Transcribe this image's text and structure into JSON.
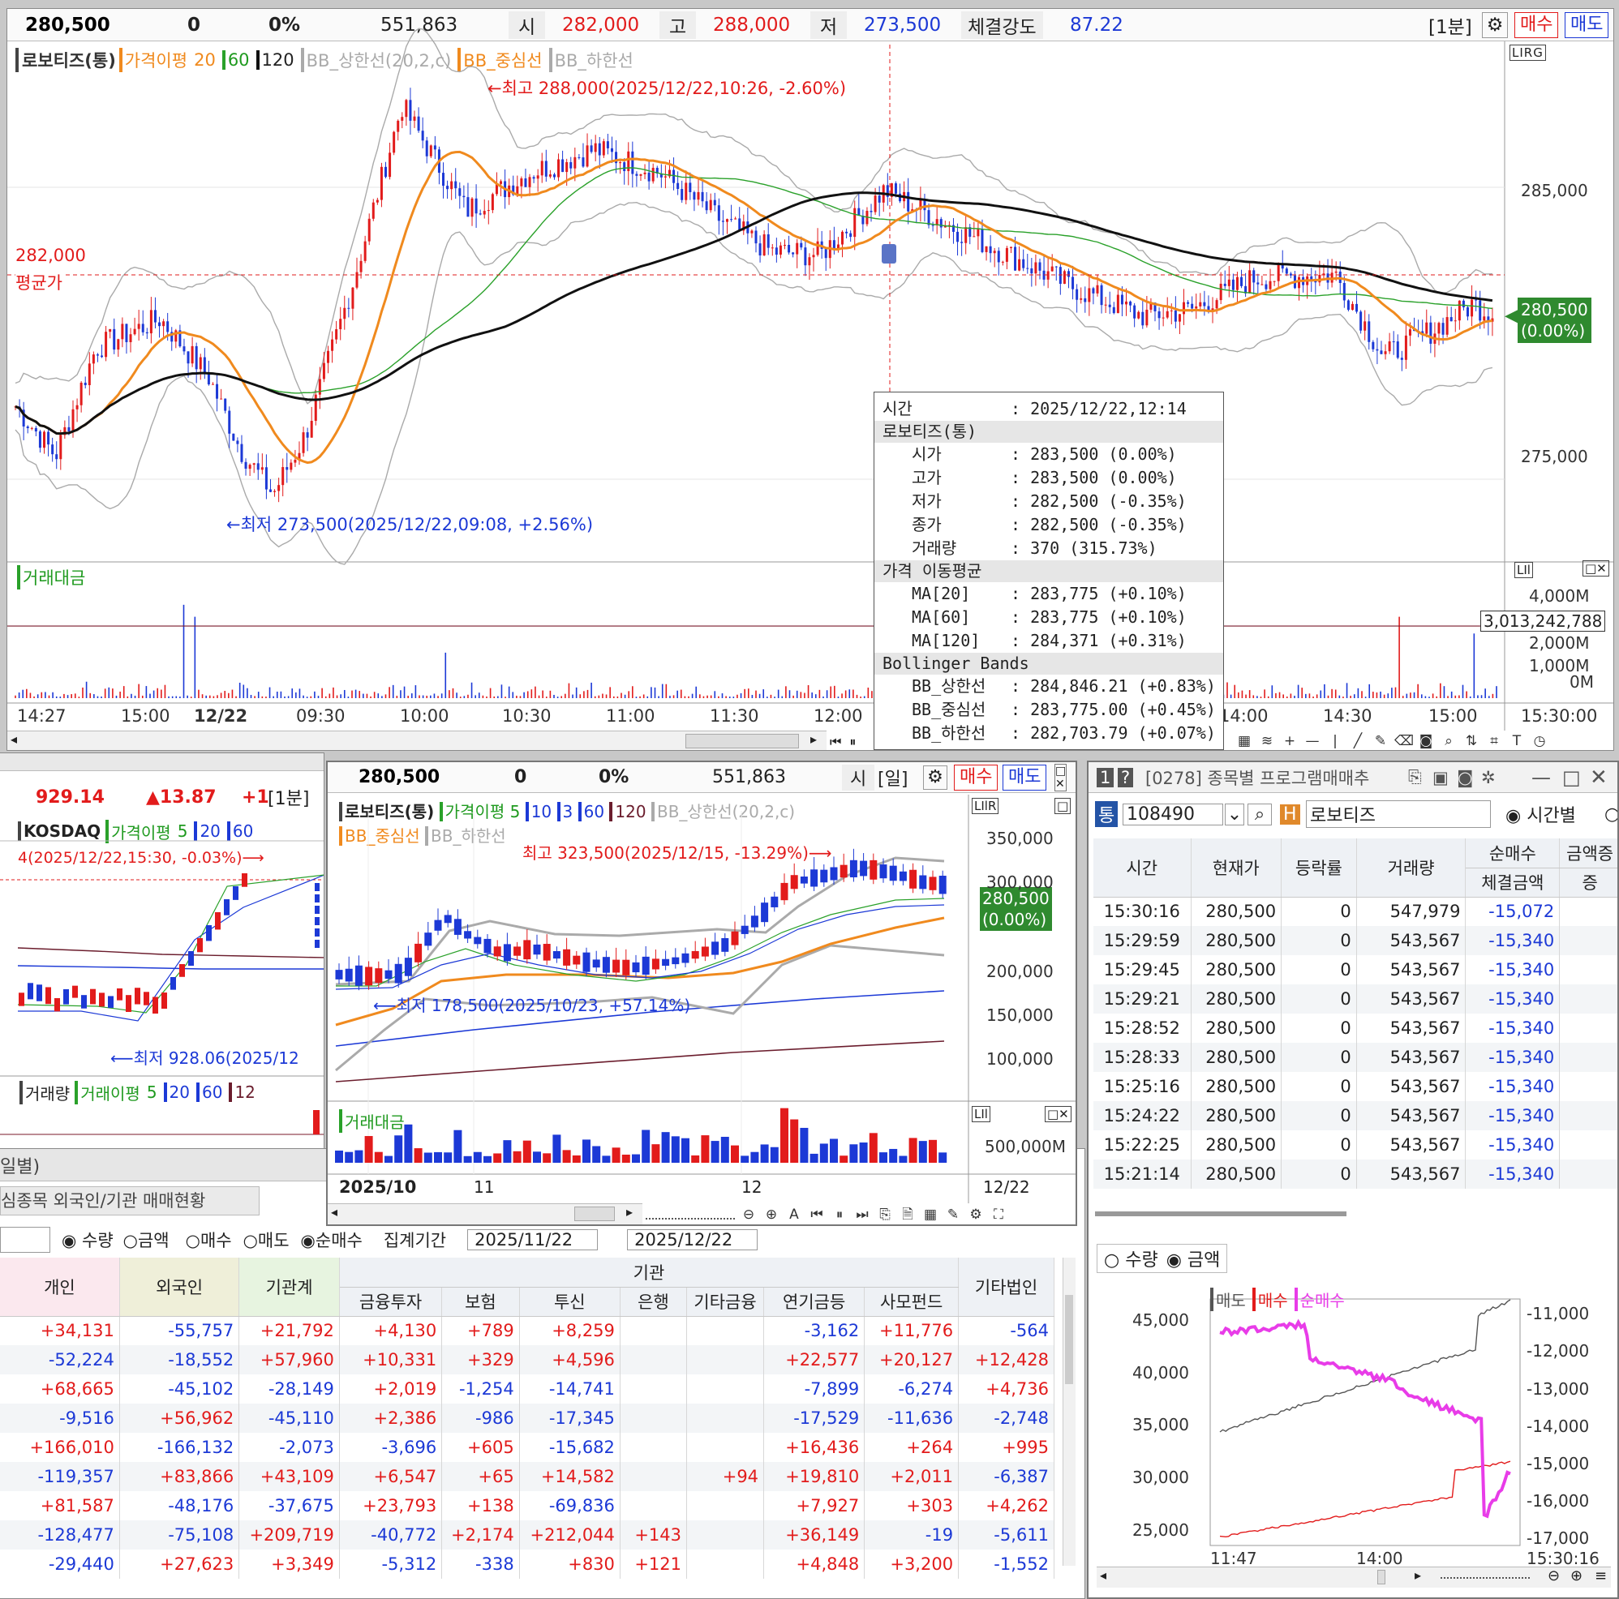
{
  "main": {
    "header": {
      "price": "280,500",
      "change": "0",
      "rate": "0%",
      "volume": "551,863",
      "open_label": "시",
      "open": "282,000",
      "high_label": "고",
      "high": "288,000",
      "low_label": "저",
      "low": "273,500",
      "strength_label": "체결강도",
      "strength": "87.22",
      "interval": "[1분]",
      "buy": "매수",
      "sell": "매도"
    },
    "legend": {
      "name": "로보티즈(통)",
      "ma_label": "가격이평",
      "ma1": "20",
      "ma2": "60",
      "ma3": "120",
      "bb_up": "BB_상한선(20,2,c)",
      "bb_mid": "BB_중심선",
      "bb_low": "BB_하한선",
      "lirg": "LIRG"
    },
    "annotations": {
      "high": "←최고 288,000(2025/12/22,10:26, -2.60%)",
      "low": "←최저 273,500(2025/12/22,09:08, +2.56%)",
      "avg_price": "282,000",
      "avg_label": "평균가",
      "current": "280,500",
      "current_rate": "(0.00%)"
    },
    "y_ticks": [
      "285,000",
      "275,000"
    ],
    "volume": {
      "label": "거래대금",
      "ticks": [
        "4,000M",
        "2,000M",
        "1,000M",
        "0M"
      ],
      "current": "3,013,242,788",
      "lil": "LIl"
    },
    "x_ticks": [
      "14:27",
      "15:00",
      "12/22",
      "09:30",
      "10:00",
      "10:30",
      "11:00",
      "11:30",
      "12:00",
      "14:00",
      "14:30",
      "15:00",
      "15:30:00"
    ],
    "tooltip": [
      {
        "k": "시간",
        "v": ": 2025/12/22,12:14",
        "sec": false,
        "indent": false
      },
      {
        "k": "로보티즈(통)",
        "v": "",
        "sec": true,
        "indent": false
      },
      {
        "k": "시가",
        "v": ": 283,500 (0.00%)",
        "sec": false,
        "indent": true
      },
      {
        "k": "고가",
        "v": ": 283,500 (0.00%)",
        "sec": false,
        "indent": true
      },
      {
        "k": "저가",
        "v": ": 282,500 (-0.35%)",
        "sec": false,
        "indent": true
      },
      {
        "k": "종가",
        "v": ": 282,500 (-0.35%)",
        "sec": false,
        "indent": true
      },
      {
        "k": "거래량",
        "v": ": 370 (315.73%)",
        "sec": false,
        "indent": true
      },
      {
        "k": "가격 이동평균",
        "v": "",
        "sec": true,
        "indent": false
      },
      {
        "k": "MA[20]",
        "v": ": 283,775 (+0.10%)",
        "sec": false,
        "indent": true
      },
      {
        "k": "MA[60]",
        "v": ": 283,775 (+0.10%)",
        "sec": false,
        "indent": true
      },
      {
        "k": "MA[120]",
        "v": ": 284,371 (+0.31%)",
        "sec": false,
        "indent": true
      },
      {
        "k": "Bollinger Bands",
        "v": "",
        "sec": true,
        "indent": false
      },
      {
        "k": "BB_상한선",
        "v": ": 284,846.21 (+0.83%)",
        "sec": false,
        "indent": true
      },
      {
        "k": "BB_중심선",
        "v": ": 283,775.00 (+0.45%)",
        "sec": false,
        "indent": true
      },
      {
        "k": "BB_하한선",
        "v": ": 282,703.79 (+0.07%)",
        "sec": false,
        "indent": true
      }
    ]
  },
  "kosdaq": {
    "value": "929.14",
    "change": "▲13.87",
    "pct": "+1",
    "interval": "[1분]",
    "legend_name": "KOSDAQ",
    "ma_label": "가격이평",
    "ma1": "5",
    "ma2": "20",
    "ma3": "60",
    "high_note": "4(2025/12/22,15:30, -0.03%)⟶",
    "low_note": "⟵최저 928.06(2025/12",
    "vol_label": "거래량",
    "vol_ma_label": "거래이평",
    "vma1": "5",
    "vma2": "20",
    "vma3": "60",
    "vma4": "12"
  },
  "daily": {
    "header": {
      "price": "280,500",
      "change": "0",
      "rate": "0%",
      "volume": "551,863",
      "open_label": "시",
      "interval": "[일]",
      "buy": "매수",
      "sell": "매도"
    },
    "legend": {
      "name": "로보티즈(통)",
      "ma_label": "가격이평",
      "ma1": "5",
      "ma2": "10",
      "ma3": "3",
      "ma4": "60",
      "ma5": "120",
      "bb_up": "BB_상한선(20,2,c)",
      "bb_mid": "BB_중심선",
      "bb_low": "BB_하한선"
    },
    "high_note": "최고 323,500(2025/12/15, -13.29%)⟶",
    "low_note": "⟵최저 178,500(2025/10/23, +57.14%)",
    "y_ticks": [
      "350,000",
      "300,000",
      "200,000",
      "150,000",
      "100,000"
    ],
    "current": "280,500",
    "current_rate": "(0.00%)",
    "vol_label": "거래대금",
    "vol_tick": "500,000M",
    "x_ticks": [
      "2025/10",
      "11",
      "12",
      "12/22"
    ]
  },
  "program": {
    "title": "[0278] 종목별 프로그램매매추",
    "code": "108490",
    "name": "로보티즈",
    "mode": "시간별",
    "cols": [
      "시간",
      "현재가",
      "등락률",
      "거래량",
      "순매수",
      "금액증",
      "체결금액",
      "증"
    ],
    "rows": [
      [
        "15:30:16",
        "280,500",
        "0",
        "547,979",
        "-15,072"
      ],
      [
        "15:29:59",
        "280,500",
        "0",
        "543,567",
        "-15,340"
      ],
      [
        "15:29:45",
        "280,500",
        "0",
        "543,567",
        "-15,340"
      ],
      [
        "15:29:21",
        "280,500",
        "0",
        "543,567",
        "-15,340"
      ],
      [
        "15:28:52",
        "280,500",
        "0",
        "543,567",
        "-15,340"
      ],
      [
        "15:28:33",
        "280,500",
        "0",
        "543,567",
        "-15,340"
      ],
      [
        "15:25:16",
        "280,500",
        "0",
        "543,567",
        "-15,340"
      ],
      [
        "15:24:22",
        "280,500",
        "0",
        "543,567",
        "-15,340"
      ],
      [
        "15:22:25",
        "280,500",
        "0",
        "543,567",
        "-15,340"
      ],
      [
        "15:21:14",
        "280,500",
        "0",
        "543,567",
        "-15,340"
      ]
    ],
    "radio1": "수량",
    "radio2": "금액",
    "chart_legend": {
      "sell": "매도",
      "buy": "매수",
      "net": "순매수"
    },
    "left_ticks": [
      "45,000",
      "40,000",
      "35,000",
      "30,000",
      "25,000"
    ],
    "right_ticks": [
      "-11,000",
      "-12,000",
      "-13,000",
      "-14,000",
      "-15,000",
      "-16,000",
      "-17,000"
    ],
    "x_ticks": [
      "11:47",
      "14:00",
      "15:30:16"
    ]
  },
  "investor": {
    "tab1": "일별)",
    "tab2": "심종목 외국인/기관 매매현황",
    "radio": [
      "수량",
      "금액",
      "매수",
      "매도",
      "순매수"
    ],
    "period_label": "집계기간",
    "date1": "2025/11/22",
    "date2": "2025/12/22",
    "group": "기관",
    "cols": [
      "개인",
      "외국인",
      "기관계",
      "금융투자",
      "보험",
      "투신",
      "은행",
      "기타금융",
      "연기금등",
      "사모펀드",
      "기타법인"
    ],
    "rows": [
      [
        "+34,131",
        "-55,757",
        "+21,792",
        "+4,130",
        "+789",
        "+8,259",
        "",
        "",
        "-3,162",
        "+11,776",
        "-564"
      ],
      [
        "-52,224",
        "-18,552",
        "+57,960",
        "+10,331",
        "+329",
        "+4,596",
        "",
        "",
        "+22,577",
        "+20,127",
        "+12,428"
      ],
      [
        "+68,665",
        "-45,102",
        "-28,149",
        "+2,019",
        "-1,254",
        "-14,741",
        "",
        "",
        "-7,899",
        "-6,274",
        "+4,736"
      ],
      [
        "-9,516",
        "+56,962",
        "-45,110",
        "+2,386",
        "-986",
        "-17,345",
        "",
        "",
        "-17,529",
        "-11,636",
        "-2,748"
      ],
      [
        "+166,010",
        "-166,132",
        "-2,073",
        "-3,696",
        "+605",
        "-15,682",
        "",
        "",
        "+16,436",
        "+264",
        "+995"
      ],
      [
        "-119,357",
        "+83,866",
        "+43,109",
        "+6,547",
        "+65",
        "+14,582",
        "",
        "+94",
        "+19,810",
        "+2,011",
        "-6,387"
      ],
      [
        "+81,587",
        "-48,176",
        "-37,675",
        "+23,793",
        "+138",
        "-69,836",
        "",
        "",
        "+7,927",
        "+303",
        "+4,262"
      ],
      [
        "-128,477",
        "-75,108",
        "+209,719",
        "-40,772",
        "+2,174",
        "+212,044",
        "+143",
        "",
        "+36,149",
        "-19",
        "-5,611"
      ],
      [
        "-29,440",
        "+27,623",
        "+3,349",
        "-5,312",
        "-338",
        "+830",
        "+121",
        "",
        "+4,848",
        "+3,200",
        "-1,552"
      ]
    ]
  },
  "colors": {
    "up": "#e21b1b",
    "down": "#1c39d6",
    "ma20": "#f08a1e",
    "ma60": "#2aa12a",
    "ma120": "#111111",
    "bb": "#aaaaaa",
    "net": "#e83ce8"
  }
}
